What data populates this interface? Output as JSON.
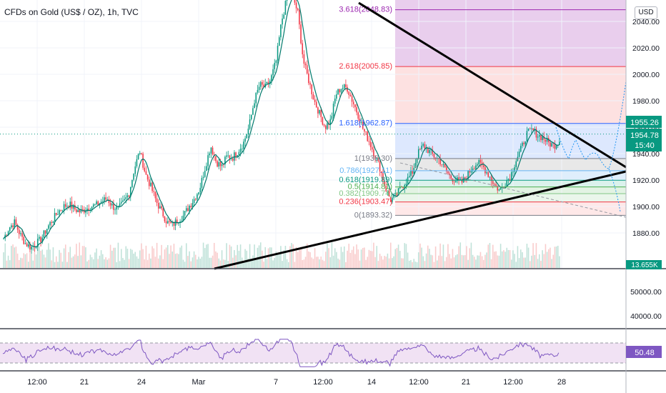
{
  "chart_data": {
    "type": "candlestick",
    "title": "CFDs on Gold (US$ / OZ), 1h, TVC",
    "currency_button": "USD",
    "price_axis": {
      "ticks": [
        "2040.00",
        "2020.00",
        "2000.00",
        "1980.00",
        "1960.00",
        "1940.00",
        "1920.00",
        "1900.00",
        "1880.00"
      ],
      "ylim": [
        1862,
        2062
      ]
    },
    "x_axis_labels": [
      "12:00",
      "21",
      "24",
      "Mar",
      "7",
      "12:00",
      "14",
      "12:00",
      "21",
      "12:00",
      "28"
    ],
    "price_labels": {
      "last_high": "1955.26",
      "current": "1954.78",
      "countdown": "15:40",
      "volume": "13.655K"
    },
    "fibonacci_levels": [
      {
        "label": "3.618(2048.83)",
        "price": 2048.83,
        "color": "#9c27b0"
      },
      {
        "label": "2.618(2005.85)",
        "price": 2005.85,
        "color": "#f23645"
      },
      {
        "label": "1.618(1962.87)",
        "price": 1962.87,
        "color": "#2962ff"
      },
      {
        "label": "1(1936.30)",
        "price": 1936.3,
        "color": "#787b86"
      },
      {
        "label": "0.786(1927.11)",
        "price": 1927.11,
        "color": "#64b5f6"
      },
      {
        "label": "0.618(1919.89)",
        "price": 1919.89,
        "color": "#089981"
      },
      {
        "label": "0.5(1914.81)",
        "price": 1914.81,
        "color": "#4caf50"
      },
      {
        "label": "0.382(1909.74)",
        "price": 1909.74,
        "color": "#81c784"
      },
      {
        "label": "0.236(1903.47)",
        "price": 1903.47,
        "color": "#f23645"
      },
      {
        "label": "0(1893.32)",
        "price": 1893.32,
        "color": "#787b86"
      }
    ],
    "price_path": [
      1876,
      1884,
      1888,
      1879,
      1872,
      1869,
      1872,
      1876,
      1884,
      1890,
      1896,
      1900,
      1902,
      1898,
      1896,
      1898,
      1900,
      1901,
      1904,
      1906,
      1900,
      1898,
      1903,
      1910,
      1929,
      1942,
      1925,
      1915,
      1904,
      1896,
      1888,
      1886,
      1890,
      1893,
      1900,
      1906,
      1914,
      1930,
      1946,
      1934,
      1930,
      1938,
      1937,
      1942,
      1948,
      1960,
      1980,
      1992,
      1990,
      1996,
      2010,
      2040,
      2058,
      2060,
      2046,
      2010,
      1995,
      1980,
      1970,
      1960,
      1965,
      1985,
      1990,
      1990,
      1980,
      1970,
      1958,
      1950,
      1940,
      1930,
      1915,
      1905,
      1908,
      1915,
      1920,
      1926,
      1940,
      1946,
      1942,
      1938,
      1935,
      1928,
      1922,
      1920,
      1918,
      1923,
      1930,
      1933,
      1930,
      1924,
      1917,
      1912,
      1918,
      1923,
      1935,
      1944,
      1955,
      1958,
      1954,
      1952,
      1948,
      1946,
      1950
    ],
    "volume_axis": {
      "ticks": [
        "50000.00",
        "40000.00"
      ]
    },
    "rsi": {
      "current": "50.48"
    }
  }
}
